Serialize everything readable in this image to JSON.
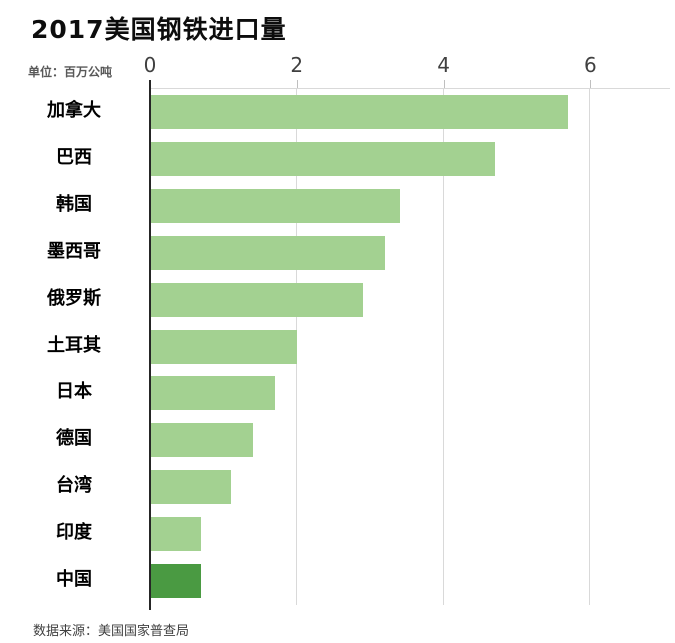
{
  "page": {
    "title": "2017美国钢铁进口量",
    "unit_label": "单位：百万公吨",
    "source": "数据来源：美国国家普查局"
  },
  "chart_data": {
    "type": "bar",
    "orientation": "horizontal",
    "title": "2017美国钢铁进口量",
    "xlabel": "",
    "ylabel": "",
    "unit": "百万公吨",
    "categories": [
      "加拿大",
      "巴西",
      "韩国",
      "墨西哥",
      "俄罗斯",
      "土耳其",
      "日本",
      "德国",
      "台湾",
      "印度",
      "中国"
    ],
    "values": [
      5.7,
      4.7,
      3.4,
      3.2,
      2.9,
      2.0,
      1.7,
      1.4,
      1.1,
      0.7,
      0.7
    ],
    "xlim": [
      0,
      6
    ],
    "x_ticks": [
      0,
      2,
      4,
      6
    ],
    "grid": true,
    "legend": false,
    "bar_color": "#a3d191",
    "highlight_color": "#4a9a42",
    "highlight_category": "中国",
    "highlight_index": 10,
    "source": "数据来源：美国国家普查局"
  }
}
